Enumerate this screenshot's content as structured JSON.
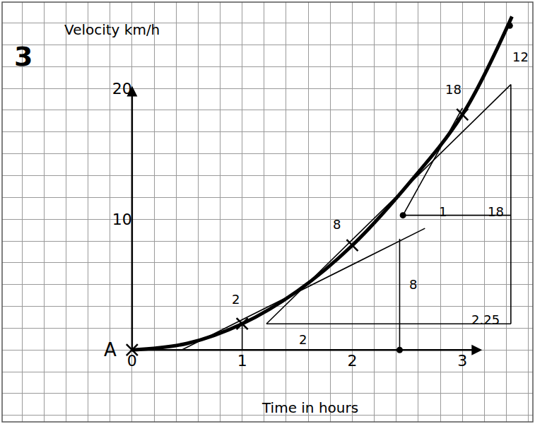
{
  "chart_data": {
    "type": "line",
    "panel_label": "3",
    "y_label": "Velocity km/h",
    "x_label": "Time in hours",
    "xlim": [
      -1.18,
      3.64
    ],
    "ylim": [
      -5.5,
      26.6
    ],
    "xticks": [
      0,
      1,
      2,
      3
    ],
    "yticks": [
      10,
      20
    ],
    "grid": true,
    "series": [
      {
        "color": "#000000",
        "line_style": "solid",
        "x": [
          0,
          0.5,
          1,
          1.5,
          2,
          2.5,
          3,
          3.45
        ],
        "values": [
          0,
          0.5,
          2,
          4.5,
          8,
          12.6,
          18,
          25.5
        ]
      }
    ],
    "marked_points": {
      "marker": "x",
      "color": "#000000",
      "x": [
        0,
        1,
        2,
        3
      ],
      "values": [
        0,
        2,
        8,
        18
      ]
    },
    "dots": {
      "marker": "circle",
      "color": "#000000",
      "x": [
        2.43,
        2.46,
        3.43
      ],
      "values": [
        0,
        10.3,
        24.8
      ]
    },
    "segments": [
      {
        "x": [
          0.45,
          2.66
        ],
        "values": [
          0,
          9.3
        ]
      },
      {
        "x": [
          1.22,
          3.44
        ],
        "values": [
          2.0,
          20.3
        ]
      },
      {
        "x": [
          1.22,
          3.44
        ],
        "values": [
          2.0,
          2.0
        ]
      },
      {
        "x": [
          3.44,
          3.44
        ],
        "values": [
          2.0,
          20.3
        ]
      },
      {
        "x": [
          2.46,
          3.0
        ],
        "values": [
          10.3,
          18.5
        ]
      },
      {
        "x": [
          2.46,
          3.44
        ],
        "values": [
          10.3,
          10.3
        ]
      },
      {
        "x": [
          2.43,
          2.43
        ],
        "values": [
          0,
          8.5
        ]
      },
      {
        "x": [
          1,
          1
        ],
        "values": [
          0,
          2
        ]
      }
    ],
    "annotations": [
      {
        "text": "A",
        "x": -0.2,
        "y": 0
      },
      {
        "text": "2",
        "x": 0.94,
        "y": 3.9
      },
      {
        "text": "8",
        "x": 1.86,
        "y": 9.6
      },
      {
        "text": "18",
        "x": 2.92,
        "y": 19.9
      },
      {
        "text": "12",
        "x": 3.53,
        "y": 22.4
      },
      {
        "text": "1",
        "x": 2.82,
        "y": 10.6
      },
      {
        "text": "18",
        "x": 3.3,
        "y": 10.6
      },
      {
        "text": "8",
        "x": 2.55,
        "y": 5
      },
      {
        "text": "2",
        "x": 1.55,
        "y": 0.8
      },
      {
        "text": "2.25",
        "x": 3.21,
        "y": 2.3
      }
    ]
  }
}
